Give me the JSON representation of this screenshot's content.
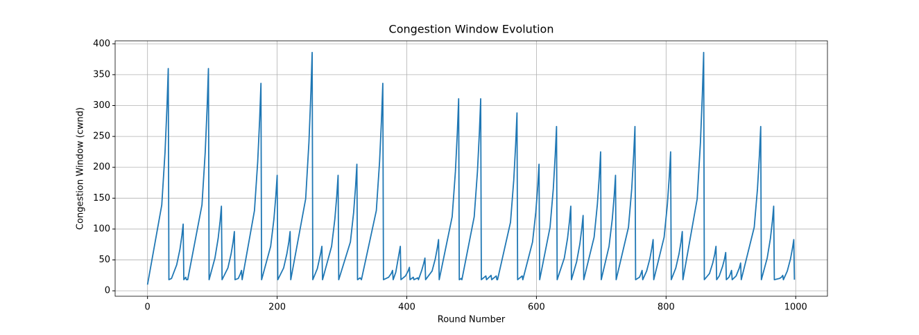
{
  "chart_data": {
    "type": "line",
    "title": "Congestion Window Evolution",
    "x_label": "Round Number",
    "y_label": "Congestion Window (cwnd)",
    "color": "#1f77b4",
    "grid": true,
    "xlim": [
      -49.95,
      1048.95
    ],
    "xticks": [
      0,
      200,
      400,
      600,
      800,
      1000
    ],
    "ylim": [
      -8.8,
      404.8
    ],
    "yticks": [
      0,
      50,
      100,
      150,
      200,
      250,
      300,
      350,
      400
    ],
    "x": [
      0,
      22,
      27,
      30,
      32,
      33,
      37,
      45,
      50,
      53,
      55,
      56,
      59,
      60,
      62,
      84,
      89,
      92,
      94,
      95,
      104,
      109,
      112,
      114,
      115,
      124,
      129,
      132,
      134,
      135,
      140,
      143,
      145,
      146,
      165,
      170,
      173,
      175,
      176,
      190,
      195,
      198,
      200,
      201,
      210,
      215,
      218,
      220,
      221,
      244,
      249,
      252,
      254,
      255,
      262,
      267,
      269,
      270,
      284,
      289,
      292,
      294,
      295,
      313,
      318,
      321,
      323,
      324,
      328,
      330,
      353,
      358,
      361,
      363,
      364,
      372,
      376,
      378,
      379,
      383,
      388,
      390,
      391,
      398,
      402,
      404,
      405,
      410,
      411,
      417,
      418,
      423,
      426,
      428,
      429,
      439,
      444,
      447,
      449,
      450,
      470,
      475,
      478,
      480,
      481,
      484,
      485,
      504,
      509,
      512,
      514,
      515,
      522,
      523,
      530,
      531,
      538,
      539,
      540,
      560,
      565,
      568,
      570,
      571,
      578,
      579,
      594,
      599,
      602,
      604,
      605,
      621,
      626,
      629,
      631,
      632,
      643,
      648,
      651,
      653,
      654,
      662,
      667,
      670,
      672,
      673,
      689,
      694,
      697,
      699,
      700,
      712,
      717,
      720,
      722,
      723,
      742,
      747,
      750,
      752,
      753,
      759,
      761,
      763,
      764,
      770,
      775,
      778,
      780,
      781,
      797,
      802,
      805,
      807,
      808,
      815,
      820,
      823,
      825,
      826,
      848,
      853,
      856,
      858,
      859,
      867,
      872,
      875,
      877,
      878,
      882,
      887,
      890,
      892,
      893,
      897,
      899,
      901,
      902,
      908,
      913,
      915,
      916,
      936,
      941,
      944,
      946,
      947,
      956,
      961,
      964,
      966,
      967,
      975,
      978,
      980,
      981,
      987,
      992,
      995,
      997,
      998
    ],
    "values": [
      10,
      139,
      224,
      297,
      360,
      18,
      20,
      42,
      67,
      89,
      108,
      18,
      22,
      18,
      18,
      139,
      224,
      297,
      360,
      18,
      53,
      85,
      113,
      137,
      18,
      37,
      60,
      79,
      96,
      18,
      20,
      27,
      33,
      18,
      130,
      209,
      278,
      336,
      18,
      72,
      116,
      154,
      187,
      18,
      37,
      60,
      79,
      96,
      18,
      149,
      240,
      319,
      386,
      18,
      36,
      60,
      72,
      18,
      72,
      116,
      154,
      187,
      18,
      79,
      127,
      169,
      205,
      18,
      21,
      18,
      130,
      209,
      278,
      336,
      18,
      22,
      28,
      33,
      18,
      30,
      60,
      72,
      18,
      24,
      32,
      38,
      18,
      22,
      18,
      21,
      18,
      33,
      44,
      53,
      18,
      32,
      52,
      69,
      83,
      18,
      120,
      193,
      257,
      311,
      18,
      20,
      18,
      120,
      193,
      257,
      311,
      18,
      24,
      18,
      25,
      18,
      24,
      18,
      18,
      111,
      179,
      238,
      288,
      18,
      24,
      18,
      79,
      127,
      169,
      205,
      18,
      103,
      165,
      220,
      266,
      18,
      53,
      85,
      113,
      137,
      18,
      47,
      76,
      101,
      122,
      18,
      87,
      140,
      186,
      225,
      18,
      72,
      116,
      154,
      187,
      18,
      103,
      165,
      220,
      266,
      18,
      22,
      27,
      33,
      18,
      32,
      52,
      69,
      83,
      18,
      87,
      140,
      186,
      225,
      18,
      37,
      60,
      79,
      96,
      18,
      149,
      240,
      319,
      386,
      18,
      28,
      45,
      59,
      72,
      18,
      24,
      39,
      51,
      62,
      18,
      22,
      27,
      33,
      18,
      24,
      37,
      45,
      18,
      103,
      165,
      220,
      266,
      18,
      53,
      85,
      113,
      137,
      18,
      20,
      22,
      25,
      18,
      32,
      52,
      69,
      83,
      18
    ]
  }
}
